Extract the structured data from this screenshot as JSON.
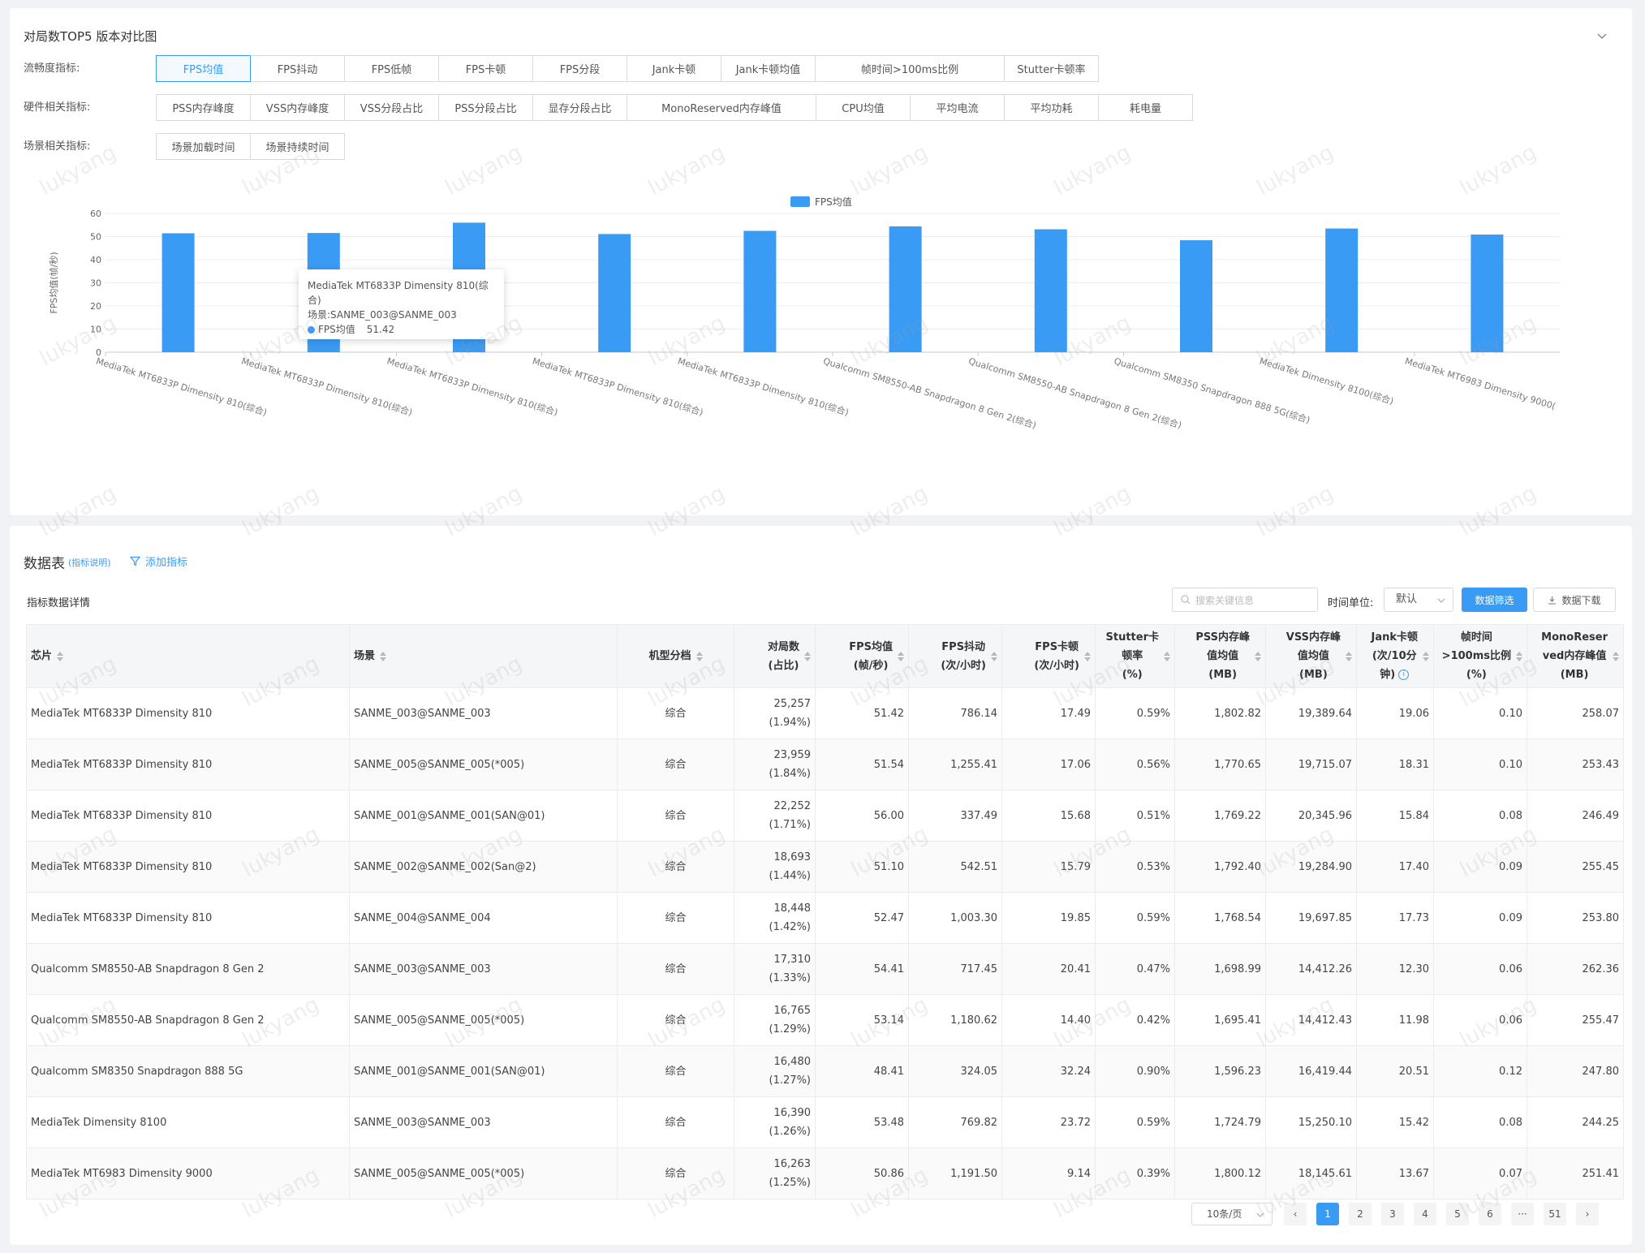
{
  "top": {
    "title": "对局数TOP5 版本对比图",
    "filters": [
      {
        "label": "流畅度指标:",
        "options": [
          "FPS均值",
          "FPS抖动",
          "FPS低帧",
          "FPS卡顿",
          "FPS分段",
          "Jank卡顿",
          "Jank卡顿均值",
          "帧时间>100ms比例",
          "Stutter卡顿率"
        ],
        "active": 0
      },
      {
        "label": "硬件相关指标:",
        "options": [
          "PSS内存峰度",
          "VSS内存峰度",
          "VSS分段占比",
          "PSS分段占比",
          "显存分段占比",
          "MonoReserved内存峰值",
          "CPU均值",
          "平均电流",
          "平均功耗",
          "耗电量"
        ],
        "active": -1
      },
      {
        "label": "场景相关指标:",
        "options": [
          "场景加载时间",
          "场景持续时间"
        ],
        "active": -1
      }
    ]
  },
  "tooltip": {
    "title": "MediaTek MT6833P Dimensity 810(综合)",
    "scene": "场景:SANME_003@SANME_003",
    "series": "FPS均值",
    "value": "51.42"
  },
  "chart_data": {
    "type": "bar",
    "title": "",
    "legend": [
      "FPS均值"
    ],
    "legend_position": "top-center",
    "ylabel": "FPS均值(帧/秒)",
    "xlabel": "",
    "ylim": [
      0,
      60
    ],
    "yticks": [
      0,
      10,
      20,
      30,
      40,
      50,
      60
    ],
    "grid": true,
    "categories": [
      "MediaTek MT6833P Dimensity 810(综合)",
      "MediaTek MT6833P Dimensity 810(综合)",
      "MediaTek MT6833P Dimensity 810(综合)",
      "MediaTek MT6833P Dimensity 810(综合)",
      "MediaTek MT6833P Dimensity 810(综合)",
      "Qualcomm SM8550-AB Snapdragon 8 Gen 2(综合)",
      "Qualcomm SM8550-AB Snapdragon 8 Gen 2(综合)",
      "Qualcomm SM8350 Snapdragon 888 5G(综合)",
      "MediaTek Dimensity 8100(综合)",
      "MediaTek MT6983 Dimensity 9000("
    ],
    "series": [
      {
        "name": "FPS均值",
        "values": [
          51.42,
          51.54,
          56.0,
          51.1,
          52.47,
          54.41,
          53.14,
          48.41,
          53.48,
          50.86
        ]
      }
    ],
    "color": "#3a9bf4"
  },
  "bottom": {
    "title": "数据表",
    "title_note": "(指标说明)",
    "add_metric": "添加指标",
    "section_label": "指标数据详情",
    "search_placeholder": "搜索关键信息",
    "time_label": "时间单位:",
    "time_value": "默认",
    "filter_button": "数据筛选",
    "download_button": "数据下载"
  },
  "table": {
    "headers": [
      {
        "lines": [
          "芯片"
        ],
        "align": "left"
      },
      {
        "lines": [
          "场景"
        ],
        "align": "left"
      },
      {
        "lines": [
          "机型分档"
        ],
        "align": "center"
      },
      {
        "lines": [
          "对局数",
          "(占比)"
        ],
        "align": "right"
      },
      {
        "lines": [
          "FPS均值",
          "(帧/秒)"
        ],
        "align": "right"
      },
      {
        "lines": [
          "FPS抖动",
          "(次/小时)"
        ],
        "align": "right"
      },
      {
        "lines": [
          "FPS卡顿",
          "(次/小时)"
        ],
        "align": "right"
      },
      {
        "lines": [
          "Stutter卡",
          "顿率",
          "(%)"
        ],
        "align": "right"
      },
      {
        "lines": [
          "PSS内存峰",
          "值均值",
          "(MB)"
        ],
        "align": "right"
      },
      {
        "lines": [
          "VSS内存峰",
          "值均值",
          "(MB)"
        ],
        "align": "right"
      },
      {
        "lines": [
          "Jank卡顿",
          "(次/10分",
          "钟)"
        ],
        "align": "right",
        "info": true
      },
      {
        "lines": [
          "帧时间",
          ">100ms比例",
          "(%)"
        ],
        "align": "right"
      },
      {
        "lines": [
          "MonoReser",
          "ved内存峰值",
          "(MB)"
        ],
        "align": "right"
      }
    ],
    "rows": [
      [
        "MediaTek MT6833P Dimensity 810",
        "SANME_003@SANME_003",
        "综合",
        "25,257",
        "(1.94%)",
        "51.42",
        "786.14",
        "17.49",
        "0.59%",
        "1,802.82",
        "19,389.64",
        "19.06",
        "0.10",
        "258.07"
      ],
      [
        "MediaTek MT6833P Dimensity 810",
        "SANME_005@SANME_005(*005)",
        "综合",
        "23,959",
        "(1.84%)",
        "51.54",
        "1,255.41",
        "17.06",
        "0.56%",
        "1,770.65",
        "19,715.07",
        "18.31",
        "0.10",
        "253.43"
      ],
      [
        "MediaTek MT6833P Dimensity 810",
        "SANME_001@SANME_001(SAN@01)",
        "综合",
        "22,252",
        "(1.71%)",
        "56.00",
        "337.49",
        "15.68",
        "0.51%",
        "1,769.22",
        "20,345.96",
        "15.84",
        "0.08",
        "246.49"
      ],
      [
        "MediaTek MT6833P Dimensity 810",
        "SANME_002@SANME_002(San@2)",
        "综合",
        "18,693",
        "(1.44%)",
        "51.10",
        "542.51",
        "15.79",
        "0.53%",
        "1,792.40",
        "19,284.90",
        "17.40",
        "0.09",
        "255.45"
      ],
      [
        "MediaTek MT6833P Dimensity 810",
        "SANME_004@SANME_004",
        "综合",
        "18,448",
        "(1.42%)",
        "52.47",
        "1,003.30",
        "19.85",
        "0.59%",
        "1,768.54",
        "19,697.85",
        "17.73",
        "0.09",
        "253.80"
      ],
      [
        "Qualcomm SM8550-AB Snapdragon 8 Gen 2",
        "SANME_003@SANME_003",
        "综合",
        "17,310",
        "(1.33%)",
        "54.41",
        "717.45",
        "20.41",
        "0.47%",
        "1,698.99",
        "14,412.26",
        "12.30",
        "0.06",
        "262.36"
      ],
      [
        "Qualcomm SM8550-AB Snapdragon 8 Gen 2",
        "SANME_005@SANME_005(*005)",
        "综合",
        "16,765",
        "(1.29%)",
        "53.14",
        "1,180.62",
        "14.40",
        "0.42%",
        "1,695.41",
        "14,412.43",
        "11.98",
        "0.06",
        "255.47"
      ],
      [
        "Qualcomm SM8350 Snapdragon 888 5G",
        "SANME_001@SANME_001(SAN@01)",
        "综合",
        "16,480",
        "(1.27%)",
        "48.41",
        "324.05",
        "32.24",
        "0.90%",
        "1,596.23",
        "16,419.44",
        "20.51",
        "0.12",
        "247.80"
      ],
      [
        "MediaTek Dimensity 8100",
        "SANME_003@SANME_003",
        "综合",
        "16,390",
        "(1.26%)",
        "53.48",
        "769.82",
        "23.72",
        "0.59%",
        "1,724.79",
        "15,250.10",
        "15.42",
        "0.08",
        "244.25"
      ],
      [
        "MediaTek MT6983 Dimensity 9000",
        "SANME_005@SANME_005(*005)",
        "综合",
        "16,263",
        "(1.25%)",
        "50.86",
        "1,191.50",
        "9.14",
        "0.39%",
        "1,800.12",
        "18,145.61",
        "13.67",
        "0.07",
        "251.41"
      ]
    ]
  },
  "pagination": {
    "page_size": "10条/页",
    "pages": [
      "1",
      "2",
      "3",
      "4",
      "5",
      "6",
      "···",
      "51"
    ],
    "active": "1",
    "prev": "‹",
    "next": "›"
  },
  "watermark": "lukyang"
}
